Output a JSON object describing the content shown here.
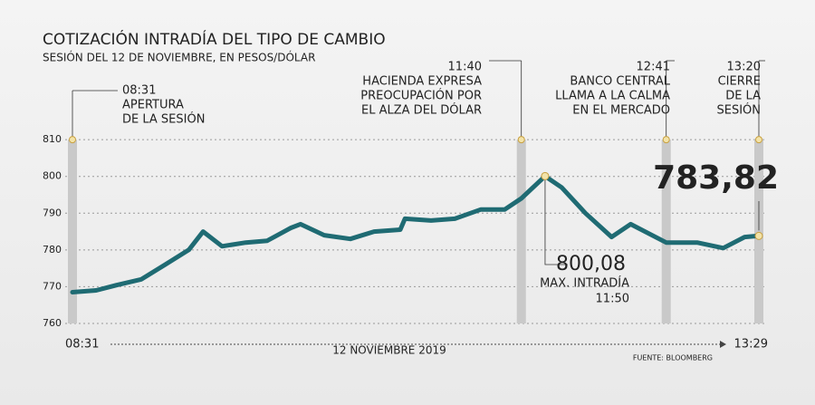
{
  "chart_data": {
    "type": "line",
    "title": "COTIZACIÓN INTRADÍA DEL TIPO DE CAMBIO",
    "subtitle": "SESIÓN DEL 12 DE NOVIEMBRE, EN PESOS/DÓLAR",
    "x_label": "12 NOVIEMBRE 2019",
    "source": "FUENTE: BLOOMBERG",
    "color": "#1f6b73",
    "highlight_color": "#e0651f",
    "x": [
      "08:31",
      "08:41",
      "08:50",
      "09:00",
      "09:10",
      "09:20",
      "09:26",
      "09:34",
      "09:44",
      "09:53",
      "10:03",
      "10:07",
      "10:17",
      "10:28",
      "10:38",
      "10:49",
      "10:51",
      "11:02",
      "11:12",
      "11:23",
      "11:33",
      "11:40",
      "11:50",
      "11:57",
      "12:07",
      "12:18",
      "12:26",
      "12:41",
      "12:54",
      "13:05",
      "13:14",
      "13:20"
    ],
    "values": [
      768.5,
      769,
      770.5,
      772,
      776,
      780,
      785,
      781,
      782,
      782.5,
      786,
      787,
      784,
      783,
      785,
      785.5,
      788.5,
      788,
      788.5,
      791,
      791,
      794,
      800.08,
      797,
      790,
      783.5,
      787,
      782,
      782,
      780.5,
      783.5,
      783.82
    ],
    "xlim": [
      "08:31",
      "13:29"
    ],
    "ylim": [
      760,
      812
    ],
    "yticks": [
      760,
      770,
      780,
      790,
      800,
      810
    ],
    "grid": true,
    "annotations": [
      {
        "time": "08:31",
        "lines": [
          "APERTURA",
          "DE LA SESIÓN"
        ]
      },
      {
        "time": "11:40",
        "lines": [
          "HACIENDA EXPRESA",
          "PREOCUPACIÓN POR",
          "EL ALZA DEL DÓLAR"
        ]
      },
      {
        "time": "12:41",
        "lines": [
          "BANCO CENTRAL",
          "LLAMA A LA CALMA",
          "EN EL MERCADO"
        ]
      },
      {
        "time": "13:20",
        "lines": [
          "CIERRE",
          "DE LA",
          "SESIÓN"
        ]
      }
    ],
    "max": {
      "x": "11:50",
      "value": 800.08,
      "value_label": "800,08",
      "label": "MAX. INTRADÍA"
    },
    "last": {
      "x": "13:20",
      "value": 783.82,
      "value_label": "783,82"
    }
  }
}
